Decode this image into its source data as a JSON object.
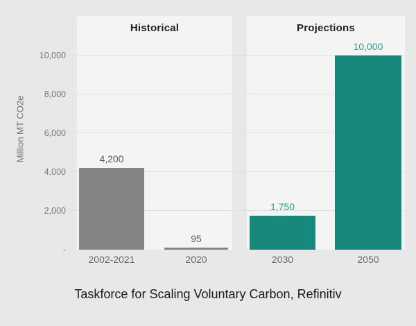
{
  "chart_data": {
    "type": "bar",
    "title": "",
    "ylabel": "Million MT CO2e",
    "xlabel": "",
    "ylim": [
      0,
      10000
    ],
    "grid": true,
    "legend": false,
    "yticks": [
      {
        "value": 10000,
        "label": "10,000"
      },
      {
        "value": 8000,
        "label": "8,000"
      },
      {
        "value": 6000,
        "label": "6,000"
      },
      {
        "value": 4000,
        "label": "4,000"
      },
      {
        "value": 2000,
        "label": "2,000"
      },
      {
        "value": 0,
        "label": "-"
      }
    ],
    "panels": [
      {
        "header": "Historical",
        "bar_color": "#848484",
        "value_label_color": "#595959",
        "bars": [
          {
            "category": "2002-2021",
            "value": 4200,
            "label": "4,200"
          },
          {
            "category": "2020",
            "value": 95,
            "label": "95"
          }
        ]
      },
      {
        "header": "Projections",
        "bar_color": "#17897c",
        "value_label_color": "#2b9a8e",
        "bars": [
          {
            "category": "2030",
            "value": 1750,
            "label": "1,750"
          },
          {
            "category": "2050",
            "value": 10000,
            "label": "10,000"
          }
        ]
      }
    ],
    "source": "Taskforce for Scaling Voluntary Carbon, Refinitiv"
  },
  "colors": {
    "background": "#e8e8e8",
    "panel": "#f4f4f4",
    "gridline": "#e0e0e0",
    "historical_bar": "#848484",
    "projection_bar": "#17897c",
    "historical_value_text": "#595959",
    "projection_value_text": "#2b9a8e",
    "tick_text": "#767676",
    "x_label_text": "#63666a",
    "header_text": "#212121",
    "caption_text": "#1a1a1a"
  }
}
